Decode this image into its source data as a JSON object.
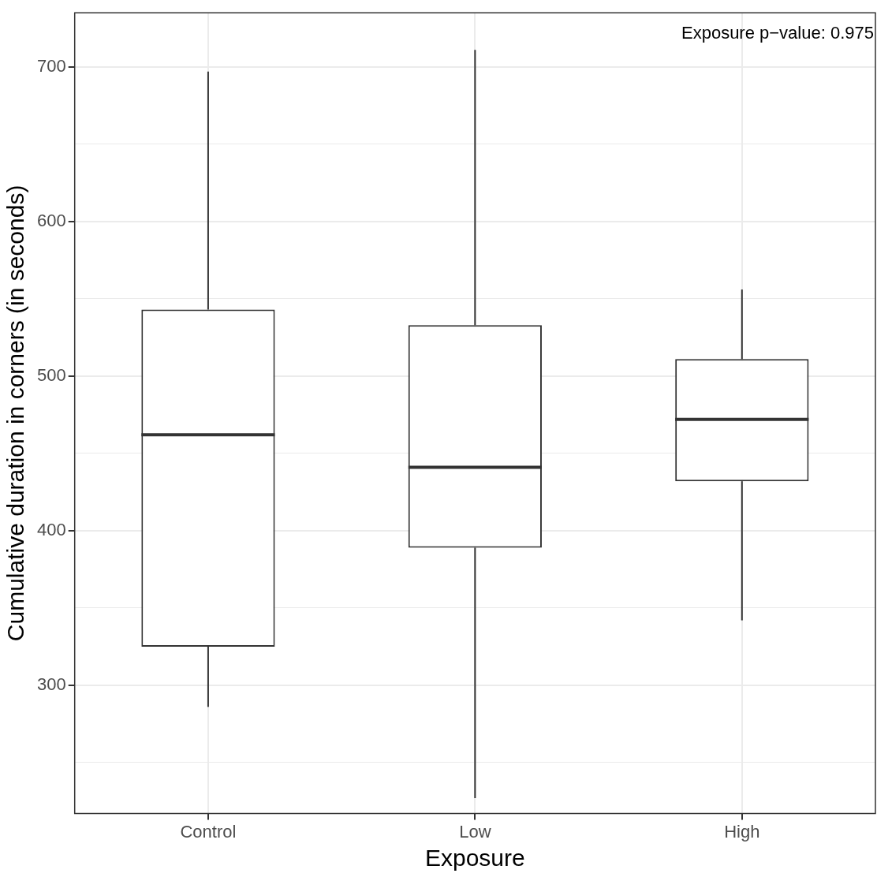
{
  "chart_data": {
    "type": "box",
    "xlabel": "Exposure",
    "ylabel": "Cumulative duration in corners (in seconds)",
    "categories": [
      "Control",
      "Low",
      "High"
    ],
    "boxes": [
      {
        "low": 286,
        "q1": 325,
        "median": 462,
        "q3": 543,
        "high": 697
      },
      {
        "low": 227,
        "q1": 389,
        "median": 441,
        "q3": 533,
        "high": 711
      },
      {
        "low": 342,
        "q1": 432,
        "median": 472,
        "q3": 511,
        "high": 556
      }
    ],
    "ylim": [
      217,
      735
    ],
    "yticks": [
      {
        "value": 250,
        "label": null
      },
      300,
      {
        "value": 350,
        "label": null
      },
      400,
      {
        "value": 450,
        "label": null
      },
      500,
      {
        "value": 550,
        "label": null
      },
      600,
      {
        "value": 650,
        "label": null
      },
      700
    ],
    "grid": true,
    "annotations": [
      "Exposure p−value: 0.975"
    ]
  }
}
